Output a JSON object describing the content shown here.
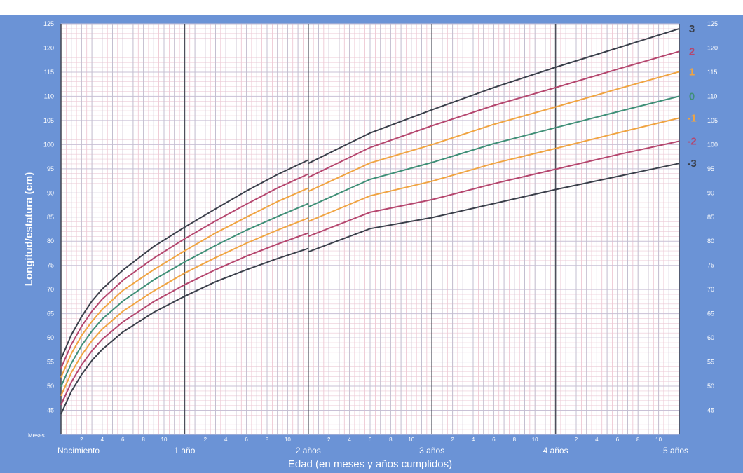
{
  "chart_data": {
    "type": "line",
    "title": "",
    "xlabel": "Edad (en meses y años cumplidos)",
    "ylabel": "Longitud/estatura (cm)",
    "xlim": [
      0,
      60
    ],
    "ylim": [
      40,
      125
    ],
    "y_ticks": [
      45,
      50,
      55,
      60,
      65,
      70,
      75,
      80,
      85,
      90,
      95,
      100,
      105,
      110,
      115,
      120,
      125
    ],
    "month_axis_label": "Meses",
    "month_ticks": [
      "2",
      "4",
      "6",
      "8",
      "10"
    ],
    "year_ticks": [
      {
        "x": 0,
        "label": "Nacimiento"
      },
      {
        "x": 12,
        "label": "1 año"
      },
      {
        "x": 24,
        "label": "2 años"
      },
      {
        "x": 36,
        "label": "3 años"
      },
      {
        "x": 48,
        "label": "4 años"
      },
      {
        "x": 60,
        "label": "5 años"
      }
    ],
    "grid": true,
    "x": [
      0,
      1,
      2,
      3,
      4,
      6,
      9,
      12,
      15,
      18,
      21,
      24,
      30,
      36,
      42,
      48,
      54,
      60
    ],
    "series": [
      {
        "name": "3",
        "color": "#3a3f4a",
        "values": [
          55.6,
          60.6,
          64.4,
          67.6,
          70.1,
          74.0,
          78.9,
          82.9,
          86.7,
          90.4,
          93.8,
          96.8,
          102.4,
          107.2,
          111.8,
          116.0,
          120.0,
          124.0
        ]
      },
      {
        "name": "2",
        "color": "#b5466e",
        "values": [
          53.7,
          58.6,
          62.4,
          65.5,
          68.0,
          71.9,
          76.5,
          80.5,
          84.2,
          87.7,
          91.0,
          93.9,
          99.4,
          103.9,
          108.1,
          111.8,
          115.6,
          119.3
        ]
      },
      {
        "name": "1",
        "color": "#f0a441",
        "values": [
          51.8,
          56.7,
          60.5,
          63.4,
          65.9,
          69.8,
          74.1,
          78.0,
          81.7,
          85.0,
          88.2,
          91.0,
          96.2,
          100.0,
          104.2,
          107.8,
          111.5,
          115.1
        ]
      },
      {
        "name": "0",
        "color": "#3f8f77",
        "values": [
          49.9,
          54.7,
          58.4,
          61.4,
          63.9,
          67.6,
          72.0,
          75.7,
          79.1,
          82.3,
          85.1,
          87.8,
          92.8,
          96.3,
          100.2,
          103.5,
          106.8,
          110.0
        ]
      },
      {
        "name": "-1",
        "color": "#f0a441",
        "values": [
          48.0,
          52.8,
          56.4,
          59.4,
          61.8,
          65.5,
          69.7,
          73.4,
          76.6,
          79.6,
          82.3,
          84.8,
          89.4,
          92.4,
          96.1,
          99.2,
          102.4,
          105.5
        ]
      },
      {
        "name": "-2",
        "color": "#b5466e",
        "values": [
          46.1,
          50.8,
          54.4,
          57.3,
          59.7,
          63.3,
          67.5,
          71.0,
          74.1,
          76.9,
          79.4,
          81.7,
          86.0,
          88.6,
          91.9,
          94.9,
          97.9,
          100.7
        ]
      },
      {
        "name": "-3",
        "color": "#3a3f4a",
        "values": [
          44.2,
          48.9,
          52.4,
          55.3,
          57.6,
          61.2,
          65.3,
          68.6,
          71.6,
          74.1,
          76.4,
          78.5,
          82.6,
          84.9,
          87.8,
          90.7,
          93.4,
          96.1
        ]
      }
    ]
  }
}
